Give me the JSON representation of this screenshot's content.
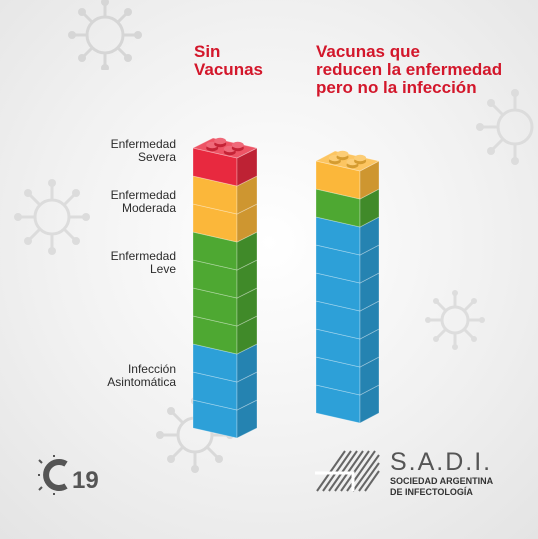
{
  "headings": {
    "left": {
      "line1": "Sin",
      "line2": "Vacunas"
    },
    "right": {
      "line1": "Vacunas que",
      "line2": "reducen la enfermedad",
      "line3": "pero no la infección"
    }
  },
  "levels": [
    {
      "line1": "Enfermedad",
      "line2": "Severa"
    },
    {
      "line1": "Enfermedad",
      "line2": "Moderada"
    },
    {
      "line1": "Enfermedad",
      "line2": "Leve"
    },
    {
      "line1": "Infección",
      "line2": "Asintomática"
    }
  ],
  "towers": [
    {
      "blocks": {
        "blue": 3,
        "green": 4,
        "yellow": 2,
        "red": 1
      }
    },
    {
      "blocks": {
        "blue": 7,
        "green": 1,
        "yellow": 1
      }
    }
  ],
  "colors": {
    "red": "#e8293f",
    "yellow": "#fbb73a",
    "green": "#4ea832",
    "blue": "#2da0d8",
    "heading": "#d3172b"
  },
  "logo": {
    "c19_text": "19",
    "name": "S.A.D.I.",
    "full_line1": "SOCIEDAD ARGENTINA",
    "full_line2": "DE INFECTOLOGÍA"
  }
}
